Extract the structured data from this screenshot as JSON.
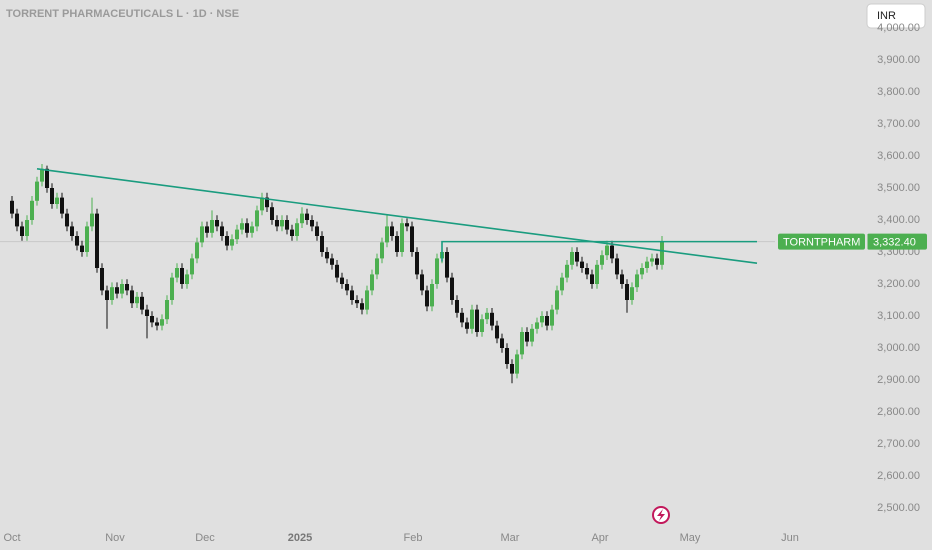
{
  "chart_data": {
    "type": "candlestick",
    "title": "TORRENT PHARMACEUTICALS L · 1D · NSE",
    "currency": "INR",
    "up_color": "#4caf50",
    "down_color": "#111111",
    "line_color": "#1a9c7f",
    "xlim": [
      -2.4,
      169.6
    ],
    "ylim": [
      2446.9,
      4087.5
    ],
    "xticks": [
      {
        "value": 0,
        "label": "Oct"
      },
      {
        "value": 20.6,
        "label": "Nov"
      },
      {
        "value": 38.6,
        "label": "Dec"
      },
      {
        "value": 57.6,
        "label": "2025"
      },
      {
        "value": 80.2,
        "label": "Feb"
      },
      {
        "value": 99.6,
        "label": "Mar"
      },
      {
        "value": 117.6,
        "label": "Apr"
      },
      {
        "value": 135.6,
        "label": "May"
      },
      {
        "value": 155.6,
        "label": "Jun"
      }
    ],
    "yticks": [
      {
        "value": 2500,
        "label": "2,500.00"
      },
      {
        "value": 2600,
        "label": "2,600.00"
      },
      {
        "value": 2700,
        "label": "2,700.00"
      },
      {
        "value": 2800,
        "label": "2,800.00"
      },
      {
        "value": 2900,
        "label": "2,900.00"
      },
      {
        "value": 3000,
        "label": "3,000.00"
      },
      {
        "value": 3100,
        "label": "3,100.00"
      },
      {
        "value": 3200,
        "label": "3,200.00"
      },
      {
        "value": 3300,
        "label": "3,300.00"
      },
      {
        "value": 3400,
        "label": "3,400.00"
      },
      {
        "value": 3500,
        "label": "3,500.00"
      },
      {
        "value": 3600,
        "label": "3,600.00"
      },
      {
        "value": 3700,
        "label": "3,700.00"
      },
      {
        "value": 3800,
        "label": "3,800.00"
      },
      {
        "value": 3900,
        "label": "3,900.00"
      },
      {
        "value": 4000,
        "label": "4,000.00"
      }
    ],
    "open": [
      3460,
      3420,
      3380,
      3350,
      3400,
      3460,
      3520,
      3560,
      3500,
      3450,
      3470,
      3420,
      3380,
      3350,
      3320,
      3300,
      3380,
      3420,
      3250,
      3180,
      3150,
      3190,
      3170,
      3200,
      3180,
      3140,
      3160,
      3120,
      3100,
      3080,
      3070,
      3090,
      3150,
      3220,
      3250,
      3200,
      3230,
      3280,
      3330,
      3380,
      3360,
      3400,
      3380,
      3350,
      3320,
      3340,
      3370,
      3390,
      3360,
      3380,
      3430,
      3470,
      3440,
      3400,
      3380,
      3400,
      3370,
      3350,
      3390,
      3420,
      3400,
      3380,
      3350,
      3300,
      3280,
      3260,
      3220,
      3200,
      3180,
      3150,
      3140,
      3120,
      3180,
      3230,
      3280,
      3330,
      3380,
      3350,
      3300,
      3390,
      3380,
      3300,
      3230,
      3180,
      3130,
      3200,
      3280,
      3300,
      3220,
      3150,
      3110,
      3080,
      3060,
      3120,
      3050,
      3090,
      3110,
      3070,
      3030,
      3000,
      2950,
      2920,
      2980,
      3050,
      3020,
      3060,
      3080,
      3100,
      3070,
      3120,
      3180,
      3220,
      3260,
      3300,
      3270,
      3250,
      3230,
      3200,
      3260,
      3290,
      3320,
      3280,
      3230,
      3200,
      3150,
      3190,
      3230,
      3250,
      3270,
      3280,
      3260
    ],
    "high": [
      3475,
      3435,
      3395,
      3415,
      3475,
      3535,
      3575,
      3570,
      3515,
      3485,
      3485,
      3435,
      3395,
      3365,
      3335,
      3395,
      3470,
      3435,
      3265,
      3195,
      3205,
      3205,
      3215,
      3215,
      3195,
      3175,
      3175,
      3135,
      3115,
      3095,
      3105,
      3165,
      3235,
      3265,
      3265,
      3245,
      3295,
      3345,
      3395,
      3395,
      3430,
      3415,
      3395,
      3365,
      3355,
      3385,
      3405,
      3405,
      3395,
      3445,
      3485,
      3485,
      3455,
      3415,
      3415,
      3415,
      3385,
      3405,
      3440,
      3435,
      3415,
      3395,
      3365,
      3315,
      3295,
      3275,
      3235,
      3215,
      3195,
      3165,
      3155,
      3195,
      3245,
      3295,
      3345,
      3415,
      3395,
      3365,
      3405,
      3405,
      3395,
      3315,
      3245,
      3195,
      3215,
      3295,
      3315,
      3315,
      3235,
      3165,
      3125,
      3095,
      3135,
      3135,
      3105,
      3125,
      3125,
      3085,
      3045,
      3015,
      2965,
      2995,
      3065,
      3065,
      3075,
      3095,
      3115,
      3115,
      3135,
      3195,
      3235,
      3275,
      3315,
      3315,
      3285,
      3265,
      3245,
      3275,
      3305,
      3335,
      3335,
      3295,
      3245,
      3215,
      3205,
      3245,
      3265,
      3285,
      3295,
      3295,
      3350
    ],
    "low": [
      3405,
      3365,
      3335,
      3335,
      3385,
      3445,
      3505,
      3485,
      3435,
      3435,
      3405,
      3365,
      3335,
      3305,
      3285,
      3285,
      3365,
      3235,
      3165,
      3060,
      3135,
      3155,
      3155,
      3165,
      3125,
      3125,
      3105,
      3030,
      3065,
      3055,
      3055,
      3075,
      3135,
      3205,
      3185,
      3185,
      3215,
      3265,
      3315,
      3345,
      3345,
      3365,
      3335,
      3305,
      3305,
      3325,
      3355,
      3345,
      3345,
      3365,
      3415,
      3425,
      3385,
      3365,
      3365,
      3355,
      3335,
      3335,
      3375,
      3385,
      3365,
      3335,
      3285,
      3265,
      3245,
      3205,
      3185,
      3165,
      3135,
      3125,
      3105,
      3105,
      3165,
      3215,
      3265,
      3315,
      3335,
      3285,
      3285,
      3365,
      3285,
      3215,
      3165,
      3115,
      3115,
      3185,
      3265,
      3205,
      3135,
      3095,
      3065,
      3045,
      3045,
      3035,
      3035,
      3075,
      3055,
      3015,
      2985,
      2935,
      2890,
      2905,
      2965,
      3005,
      3005,
      3045,
      3065,
      3055,
      3055,
      3105,
      3165,
      3205,
      3245,
      3255,
      3235,
      3215,
      3185,
      3185,
      3245,
      3275,
      3265,
      3215,
      3185,
      3110,
      3135,
      3175,
      3215,
      3235,
      3255,
      3245,
      3245
    ],
    "close": [
      3420,
      3380,
      3350,
      3400,
      3460,
      3520,
      3560,
      3500,
      3450,
      3470,
      3420,
      3380,
      3350,
      3320,
      3300,
      3380,
      3420,
      3250,
      3180,
      3150,
      3190,
      3170,
      3200,
      3180,
      3140,
      3160,
      3120,
      3100,
      3080,
      3070,
      3090,
      3150,
      3220,
      3250,
      3200,
      3230,
      3280,
      3330,
      3380,
      3360,
      3400,
      3380,
      3350,
      3320,
      3340,
      3370,
      3390,
      3360,
      3380,
      3430,
      3470,
      3440,
      3400,
      3380,
      3400,
      3370,
      3350,
      3390,
      3420,
      3400,
      3380,
      3350,
      3300,
      3280,
      3260,
      3220,
      3200,
      3180,
      3150,
      3140,
      3120,
      3180,
      3230,
      3280,
      3330,
      3380,
      3350,
      3300,
      3390,
      3380,
      3300,
      3230,
      3180,
      3130,
      3200,
      3280,
      3300,
      3220,
      3150,
      3110,
      3080,
      3060,
      3120,
      3050,
      3090,
      3110,
      3070,
      3030,
      3000,
      2950,
      2920,
      2980,
      3050,
      3020,
      3060,
      3080,
      3100,
      3070,
      3120,
      3180,
      3220,
      3260,
      3300,
      3270,
      3250,
      3230,
      3200,
      3260,
      3290,
      3320,
      3280,
      3230,
      3200,
      3150,
      3190,
      3230,
      3250,
      3270,
      3280,
      3260,
      3332.4
    ],
    "trendlines": [
      {
        "x": [
          5,
          149
        ],
        "y": [
          3560,
          3265
        ]
      },
      {
        "x": [
          86,
          86,
          149
        ],
        "y": [
          3270,
          3332.4,
          3332.4
        ]
      }
    ],
    "last_price": {
      "symbol": "TORNTPHARM",
      "value": 3332.4,
      "value_label": "3,332.40"
    }
  }
}
